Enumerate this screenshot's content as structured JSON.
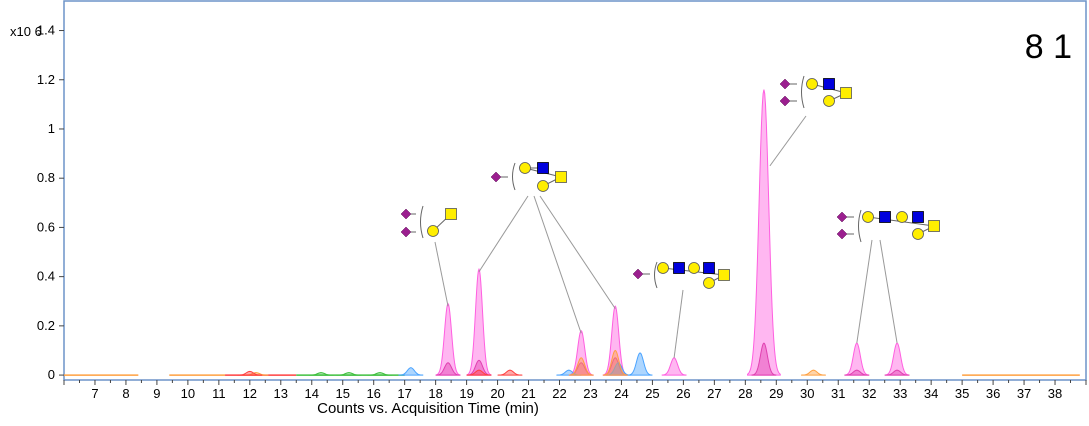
{
  "chart_data": {
    "type": "area",
    "panel_label": "8 1",
    "y_multiplier": "x10 6",
    "xlabel": "Counts vs. Acquisition Time (min)",
    "ylabel": "",
    "xlim": [
      6,
      39
    ],
    "ylim": [
      -0.02,
      1.52
    ],
    "y_ticks": [
      0,
      0.2,
      0.4,
      0.6,
      0.8,
      1,
      1.2,
      1.4
    ],
    "y_tick_labels": [
      "0",
      "0.2",
      "0.4",
      "0.6",
      "0.8",
      "1",
      "1.2",
      "1.4"
    ],
    "x_ticks": [
      7,
      8,
      9,
      10,
      11,
      12,
      13,
      14,
      15,
      16,
      17,
      18,
      19,
      20,
      21,
      22,
      23,
      24,
      25,
      26,
      27,
      28,
      29,
      30,
      31,
      32,
      33,
      34,
      35,
      36,
      37,
      38
    ],
    "grid": false,
    "colors": {
      "frame": "#6d93c8",
      "pink": "#ff5fe0",
      "blue": "#4aa3ff",
      "orange": "#ffa040",
      "red": "#ff4040",
      "green": "#40c040",
      "glycan_purple": "#9b1f8f",
      "glycan_yellow": "#ffee00",
      "glycan_blue": "#0000dd"
    },
    "series": [
      {
        "color": "#ff5fe0",
        "peaks": [
          {
            "x": 18.4,
            "y": 0.29
          },
          {
            "x": 19.4,
            "y": 0.43
          },
          {
            "x": 22.7,
            "y": 0.18
          },
          {
            "x": 23.8,
            "y": 0.28
          },
          {
            "x": 25.7,
            "y": 0.07
          },
          {
            "x": 28.6,
            "y": 1.16
          },
          {
            "x": 31.6,
            "y": 0.13
          },
          {
            "x": 32.9,
            "y": 0.13
          }
        ]
      },
      {
        "color": "#e040b0",
        "peaks": [
          {
            "x": 18.4,
            "y": 0.05
          },
          {
            "x": 19.4,
            "y": 0.06
          },
          {
            "x": 22.7,
            "y": 0.05
          },
          {
            "x": 23.8,
            "y": 0.07
          },
          {
            "x": 28.6,
            "y": 0.13
          },
          {
            "x": 31.6,
            "y": 0.02
          },
          {
            "x": 32.9,
            "y": 0.02
          }
        ]
      },
      {
        "color": "#4aa3ff",
        "peaks": [
          {
            "x": 17.2,
            "y": 0.03
          },
          {
            "x": 22.3,
            "y": 0.02
          },
          {
            "x": 23.9,
            "y": 0.05
          },
          {
            "x": 24.6,
            "y": 0.09
          }
        ]
      },
      {
        "color": "#ffa040",
        "peaks": [
          {
            "x": 12.2,
            "y": 0.01
          },
          {
            "x": 22.7,
            "y": 0.07
          },
          {
            "x": 23.8,
            "y": 0.1
          },
          {
            "x": 30.2,
            "y": 0.02
          }
        ]
      },
      {
        "color": "#ff4040",
        "peaks": [
          {
            "x": 12.0,
            "y": 0.015
          },
          {
            "x": 19.4,
            "y": 0.02
          },
          {
            "x": 20.4,
            "y": 0.02
          }
        ]
      },
      {
        "color": "#40c040",
        "peaks": [
          {
            "x": 14.3,
            "y": 0.01
          },
          {
            "x": 15.2,
            "y": 0.01
          },
          {
            "x": 16.2,
            "y": 0.01
          }
        ]
      }
    ],
    "annotations": [
      {
        "glycan": "disialyl-core1 (2 Neu5Ac, Gal, GalNAc)",
        "peak_x": [
          18.4
        ]
      },
      {
        "glycan": "monosialyl core2 (Neu5Ac, Gal, GlcNAc, Gal, GalNAc)",
        "peak_x": [
          19.4,
          22.7,
          23.8
        ]
      },
      {
        "glycan": "monosialyl extended core2 (Neu5Ac, Gal, GlcNAc, Gal, GlcNAc, Gal, GalNAc)",
        "peak_x": [
          25.7
        ]
      },
      {
        "glycan": "disialyl core2 (2 Neu5Ac, Gal, GlcNAc, Gal, GalNAc)",
        "peak_x": [
          28.6
        ]
      },
      {
        "glycan": "disialyl extended core2 (2 Neu5Ac, Gal, GlcNAc, Gal, GlcNAc, Gal, GalNAc)",
        "peak_x": [
          31.6,
          32.9
        ]
      }
    ]
  }
}
